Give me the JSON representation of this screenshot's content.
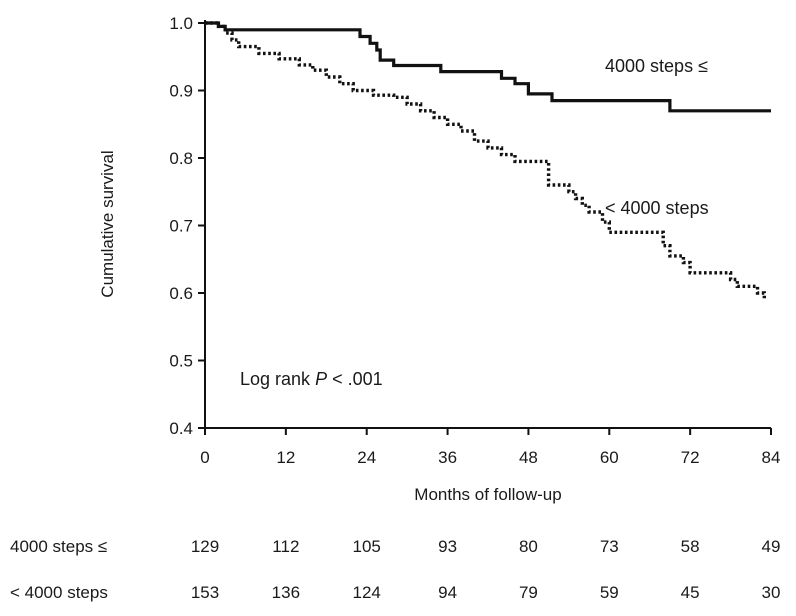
{
  "chart_data": {
    "type": "line",
    "title": "",
    "xlabel": "Months of follow-up",
    "ylabel": "Cumulative survival",
    "xlim": [
      0,
      84
    ],
    "ylim": [
      0.4,
      1.0
    ],
    "xticks": [
      "0",
      "12",
      "24",
      "36",
      "48",
      "60",
      "72",
      "84"
    ],
    "yticks": [
      "0.4",
      "0.5",
      "0.6",
      "0.7",
      "0.8",
      "0.9",
      "1.0"
    ],
    "grid": false,
    "legend": "none",
    "annotation": {
      "prefix": "Log rank ",
      "p_symbol": "P",
      "suffix": " < .001"
    },
    "series": [
      {
        "name": "4000 steps ≤",
        "line_style": "solid",
        "color": "#111111",
        "points": [
          [
            0,
            1.0
          ],
          [
            2,
            1.0
          ],
          [
            2,
            0.995
          ],
          [
            3,
            0.995
          ],
          [
            3,
            0.99
          ],
          [
            23,
            0.99
          ],
          [
            23,
            0.98
          ],
          [
            24.5,
            0.98
          ],
          [
            24.5,
            0.97
          ],
          [
            25.5,
            0.97
          ],
          [
            25.5,
            0.96
          ],
          [
            26,
            0.96
          ],
          [
            26,
            0.945
          ],
          [
            28,
            0.945
          ],
          [
            28,
            0.937
          ],
          [
            35,
            0.937
          ],
          [
            35,
            0.928
          ],
          [
            44,
            0.928
          ],
          [
            44,
            0.918
          ],
          [
            46,
            0.918
          ],
          [
            46,
            0.91
          ],
          [
            48,
            0.91
          ],
          [
            48,
            0.895
          ],
          [
            51.5,
            0.895
          ],
          [
            51.5,
            0.885
          ],
          [
            69,
            0.885
          ],
          [
            69,
            0.87
          ],
          [
            84,
            0.87
          ]
        ]
      },
      {
        "name": "< 4000 steps",
        "line_style": "dotted",
        "color": "#111111",
        "points": [
          [
            0,
            1.0
          ],
          [
            2,
            1.0
          ],
          [
            2,
            0.995
          ],
          [
            3,
            0.995
          ],
          [
            3,
            0.985
          ],
          [
            4,
            0.985
          ],
          [
            4,
            0.975
          ],
          [
            5,
            0.975
          ],
          [
            5,
            0.965
          ],
          [
            8,
            0.965
          ],
          [
            8,
            0.955
          ],
          [
            11,
            0.955
          ],
          [
            11,
            0.947
          ],
          [
            14,
            0.947
          ],
          [
            14,
            0.938
          ],
          [
            16,
            0.938
          ],
          [
            16,
            0.93
          ],
          [
            18,
            0.93
          ],
          [
            18,
            0.92
          ],
          [
            20,
            0.92
          ],
          [
            20,
            0.91
          ],
          [
            22,
            0.91
          ],
          [
            22,
            0.9
          ],
          [
            25,
            0.9
          ],
          [
            25,
            0.893
          ],
          [
            28,
            0.893
          ],
          [
            28,
            0.89
          ],
          [
            30,
            0.89
          ],
          [
            30,
            0.88
          ],
          [
            32,
            0.88
          ],
          [
            32,
            0.87
          ],
          [
            34,
            0.87
          ],
          [
            34,
            0.86
          ],
          [
            36,
            0.86
          ],
          [
            36,
            0.85
          ],
          [
            38,
            0.85
          ],
          [
            38,
            0.84
          ],
          [
            40,
            0.84
          ],
          [
            40,
            0.825
          ],
          [
            42,
            0.825
          ],
          [
            42,
            0.815
          ],
          [
            44,
            0.815
          ],
          [
            44,
            0.805
          ],
          [
            46,
            0.805
          ],
          [
            46,
            0.795
          ],
          [
            51,
            0.795
          ],
          [
            51,
            0.76
          ],
          [
            54,
            0.76
          ],
          [
            54,
            0.75
          ],
          [
            55,
            0.75
          ],
          [
            55,
            0.74
          ],
          [
            56,
            0.74
          ],
          [
            56,
            0.73
          ],
          [
            57,
            0.73
          ],
          [
            57,
            0.72
          ],
          [
            59,
            0.72
          ],
          [
            59,
            0.705
          ],
          [
            60,
            0.705
          ],
          [
            60,
            0.69
          ],
          [
            68,
            0.69
          ],
          [
            68,
            0.67
          ],
          [
            69,
            0.67
          ],
          [
            69,
            0.655
          ],
          [
            71,
            0.655
          ],
          [
            71,
            0.645
          ],
          [
            72,
            0.645
          ],
          [
            72,
            0.63
          ],
          [
            78,
            0.63
          ],
          [
            78,
            0.62
          ],
          [
            79,
            0.62
          ],
          [
            79,
            0.61
          ],
          [
            82,
            0.61
          ],
          [
            82,
            0.6
          ],
          [
            83,
            0.6
          ],
          [
            83,
            0.59
          ]
        ]
      }
    ],
    "risk_table": {
      "times": [
        "0",
        "12",
        "24",
        "36",
        "48",
        "60",
        "72",
        "84"
      ],
      "rows": [
        {
          "label": "4000 steps ≤",
          "values": [
            "129",
            "112",
            "105",
            "93",
            "80",
            "73",
            "58",
            "49"
          ]
        },
        {
          "label": "< 4000 steps",
          "values": [
            "153",
            "136",
            "124",
            "94",
            "79",
            "59",
            "45",
            "30"
          ]
        }
      ]
    }
  }
}
